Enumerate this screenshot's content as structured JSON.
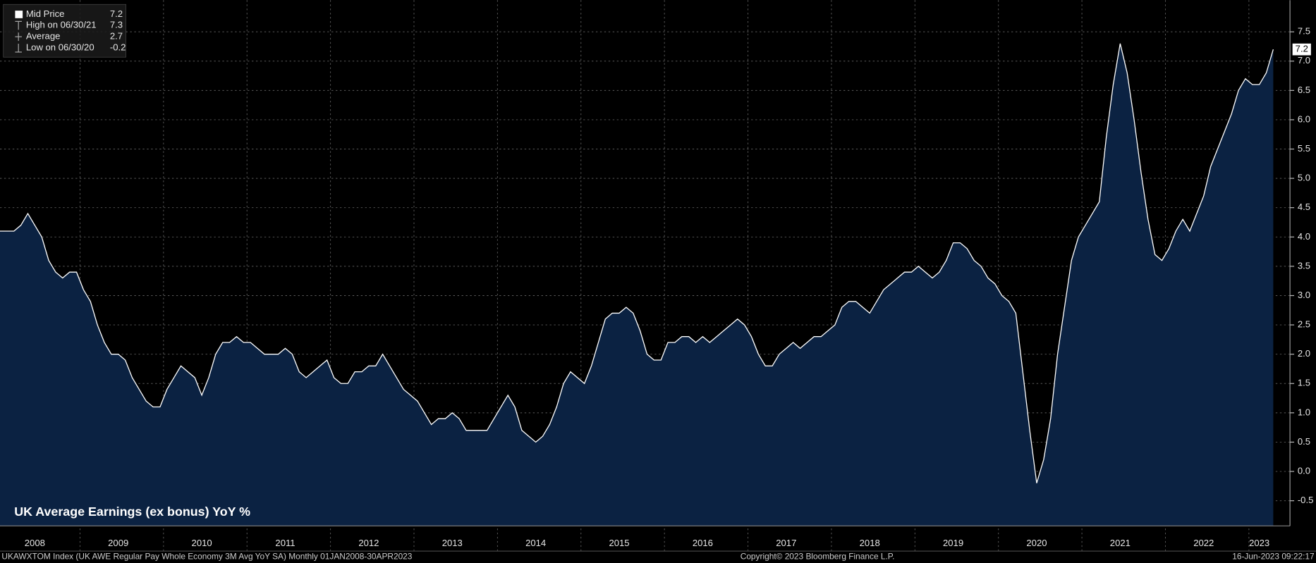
{
  "chart_data": {
    "type": "area",
    "title": "UK Average Earnings (ex bonus) YoY %",
    "footer_left": "UKAWXTOM Index (UK AWE Regular Pay Whole Economy 3M Avg YoY SA)  Monthly 01JAN2008-30APR2023",
    "footer_center": "Copyright© 2023 Bloomberg Finance L.P.",
    "footer_right": "16-Jun-2023 09:22:17",
    "legend": [
      {
        "label": "Mid Price",
        "value": 7.2
      },
      {
        "label": "High on 06/30/21",
        "value": 7.3
      },
      {
        "label": "Average",
        "value": 2.7
      },
      {
        "label": "Low on 06/30/20",
        "value": -0.2
      }
    ],
    "categories": [
      null,
      null,
      null,
      null,
      null,
      "2008",
      null,
      null,
      null,
      null,
      null,
      null,
      null,
      null,
      null,
      null,
      null,
      "2009",
      null,
      null,
      null,
      null,
      null,
      null,
      null,
      null,
      null,
      null,
      null,
      "2010",
      null,
      null,
      null,
      null,
      null,
      null,
      null,
      null,
      null,
      null,
      null,
      "2011",
      null,
      null,
      null,
      null,
      null,
      null,
      null,
      null,
      null,
      null,
      null,
      "2012",
      null,
      null,
      null,
      null,
      null,
      null,
      null,
      null,
      null,
      null,
      null,
      "2013",
      null,
      null,
      null,
      null,
      null,
      null,
      null,
      null,
      null,
      null,
      null,
      "2014",
      null,
      null,
      null,
      null,
      null,
      null,
      null,
      null,
      null,
      null,
      null,
      "2015",
      null,
      null,
      null,
      null,
      null,
      null,
      null,
      null,
      null,
      null,
      null,
      "2016",
      null,
      null,
      null,
      null,
      null,
      null,
      null,
      null,
      null,
      null,
      null,
      "2017",
      null,
      null,
      null,
      null,
      null,
      null,
      null,
      null,
      null,
      null,
      null,
      "2018",
      null,
      null,
      null,
      null,
      null,
      null,
      null,
      null,
      null,
      null,
      null,
      "2019",
      null,
      null,
      null,
      null,
      null,
      null,
      null,
      null,
      null,
      null,
      null,
      "2020",
      null,
      null,
      null,
      null,
      null,
      null,
      null,
      null,
      null,
      null,
      null,
      "2021",
      null,
      null,
      null,
      null,
      null,
      null,
      null,
      null,
      null,
      null,
      null,
      "2022",
      null,
      null,
      null,
      null,
      null,
      null,
      null,
      "2023",
      null,
      null
    ],
    "series": [
      {
        "name": "Mid Price",
        "color": "#ffffff",
        "fill": "#0b2242",
        "values": [
          4.1,
          4.1,
          4.1,
          4.2,
          4.4,
          4.2,
          4.0,
          3.6,
          3.4,
          3.3,
          3.4,
          3.4,
          3.1,
          2.9,
          2.5,
          2.2,
          2.0,
          2.0,
          1.9,
          1.6,
          1.4,
          1.2,
          1.1,
          1.1,
          1.4,
          1.6,
          1.8,
          1.7,
          1.6,
          1.3,
          1.6,
          2.0,
          2.2,
          2.2,
          2.3,
          2.2,
          2.2,
          2.1,
          2.0,
          2.0,
          2.0,
          2.1,
          2.0,
          1.7,
          1.6,
          1.7,
          1.8,
          1.9,
          1.6,
          1.5,
          1.5,
          1.7,
          1.7,
          1.8,
          1.8,
          2.0,
          1.8,
          1.6,
          1.4,
          1.3,
          1.2,
          1.0,
          0.8,
          0.9,
          0.9,
          1.0,
          0.9,
          0.7,
          0.7,
          0.7,
          0.7,
          0.9,
          1.1,
          1.3,
          1.1,
          0.7,
          0.6,
          0.5,
          0.6,
          0.8,
          1.1,
          1.5,
          1.7,
          1.6,
          1.5,
          1.8,
          2.2,
          2.6,
          2.7,
          2.7,
          2.8,
          2.7,
          2.4,
          2.0,
          1.9,
          1.9,
          2.2,
          2.2,
          2.3,
          2.3,
          2.2,
          2.3,
          2.2,
          2.3,
          2.4,
          2.5,
          2.6,
          2.5,
          2.3,
          2.0,
          1.8,
          1.8,
          2.0,
          2.1,
          2.2,
          2.1,
          2.2,
          2.3,
          2.3,
          2.4,
          2.5,
          2.8,
          2.9,
          2.9,
          2.8,
          2.7,
          2.9,
          3.1,
          3.2,
          3.3,
          3.4,
          3.4,
          3.5,
          3.4,
          3.3,
          3.4,
          3.6,
          3.9,
          3.9,
          3.8,
          3.6,
          3.5,
          3.3,
          3.2,
          3.0,
          2.9,
          2.7,
          1.7,
          0.7,
          -0.2,
          0.2,
          0.9,
          2.0,
          2.8,
          3.6,
          4.0,
          4.2,
          4.4,
          4.6,
          5.7,
          6.6,
          7.3,
          6.8,
          6.0,
          5.1,
          4.3,
          3.7,
          3.6,
          3.8,
          4.1,
          4.3,
          4.1,
          4.4,
          4.7,
          5.2,
          5.5,
          5.8,
          6.1,
          6.5,
          6.7,
          6.6,
          6.6,
          6.8,
          7.2
        ]
      }
    ],
    "ylim": [
      -0.93,
      8.04
    ],
    "yticks": [
      -0.5,
      {
        "value": 0,
        "label": "0.0"
      },
      0.5,
      {
        "value": 1,
        "label": "1.0"
      },
      1.5,
      {
        "value": 2,
        "label": "2.0"
      },
      2.5,
      {
        "value": 3,
        "label": "3.0"
      },
      3.5,
      {
        "value": 4,
        "label": "4.0"
      },
      4.5,
      {
        "value": 5,
        "label": "5.0"
      },
      5.5,
      {
        "value": 6,
        "label": "6.0"
      },
      6.5,
      {
        "value": 7,
        "label": "7.0"
      },
      7.5
    ],
    "y_axis_side": "right",
    "grid": true,
    "legend_position": "upper left",
    "background": "#000000"
  }
}
